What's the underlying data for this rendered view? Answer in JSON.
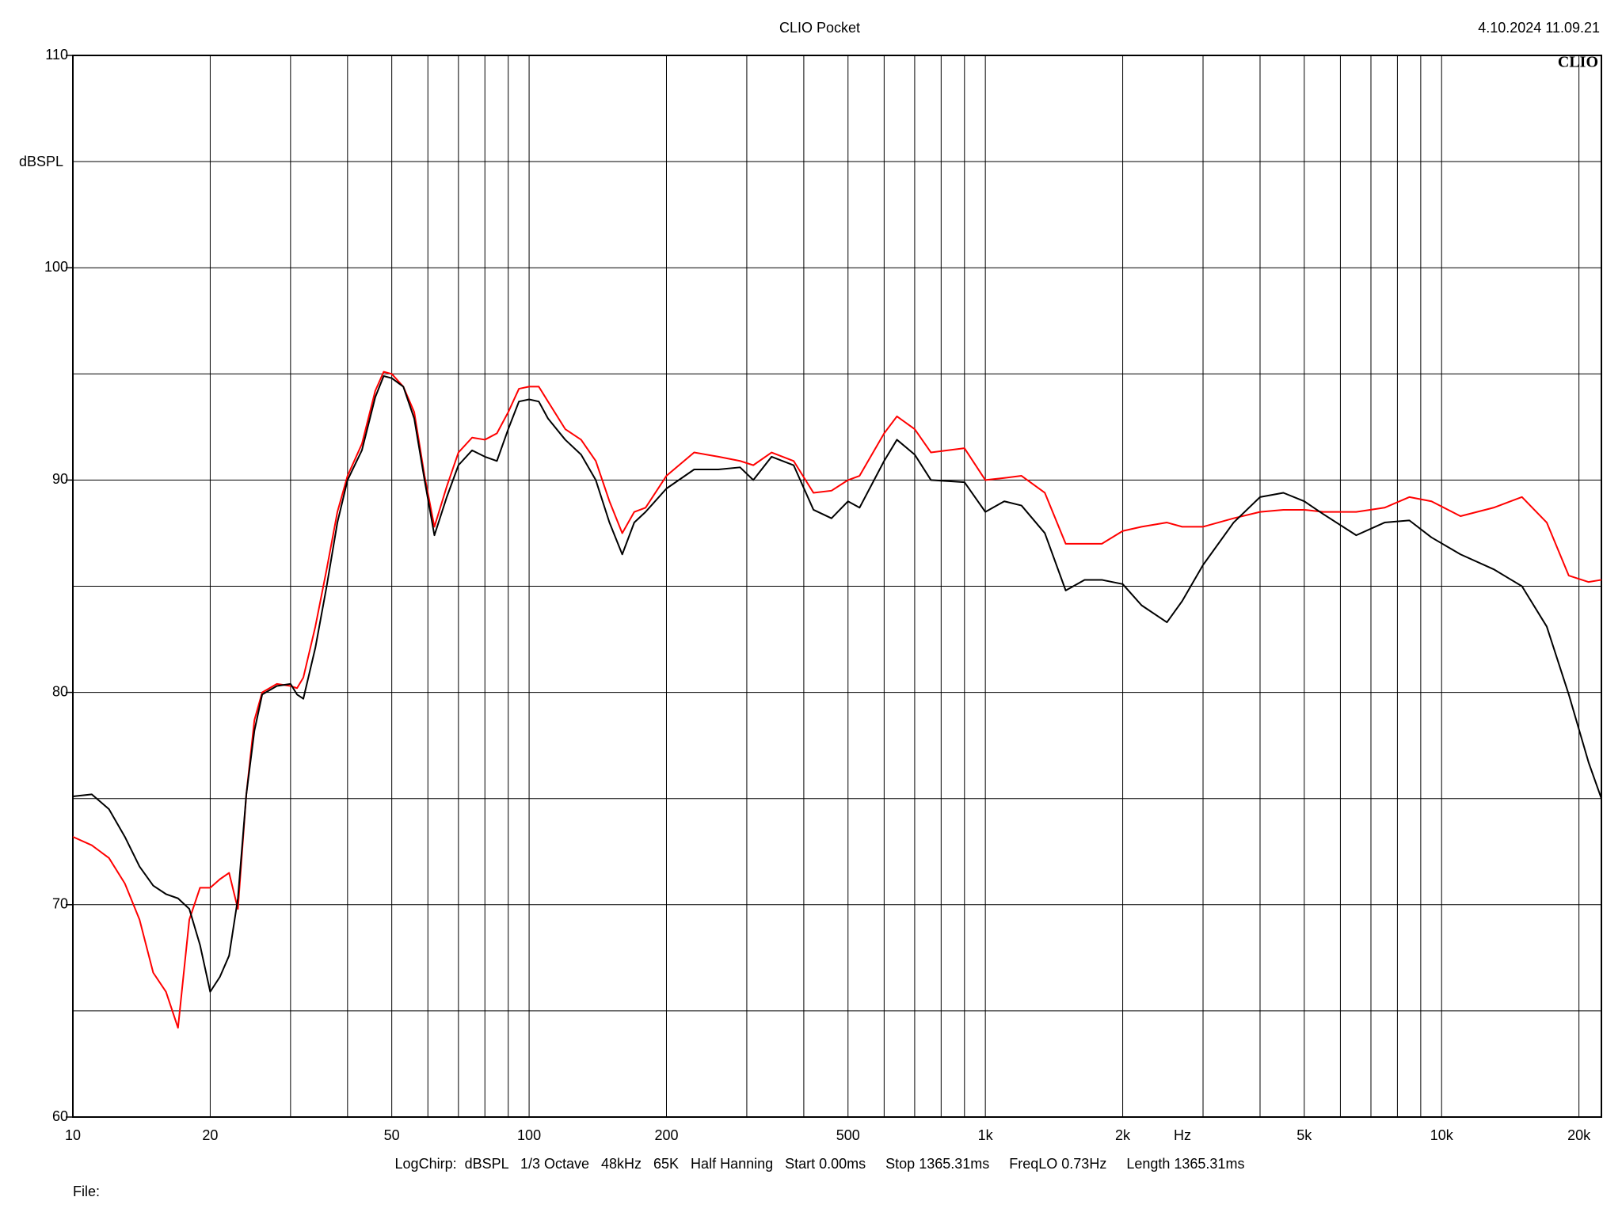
{
  "chart_data": {
    "type": "line",
    "title": "CLIO Pocket",
    "timestamp": "4.10.2024 11.09.21",
    "logo": "CLIO",
    "y_label": "dBSPL",
    "x_label": "Hz",
    "footer": "LogChirp:  dBSPL   1/3 Octave   48kHz   65K   Half Hanning   Start 0.00ms     Stop 1365.31ms     FreqLO 0.73Hz     Length 1365.31ms",
    "file_label": "File:",
    "xscale": "log",
    "xlim": [
      10,
      22400
    ],
    "ylim": [
      60,
      110
    ],
    "xticks": [
      10,
      20,
      50,
      100,
      200,
      500,
      {
        "value": 1000,
        "label": "1k"
      },
      {
        "value": 2000,
        "label": "2k"
      },
      {
        "value": 5000,
        "label": "5k"
      },
      {
        "value": 10000,
        "label": "10k"
      },
      {
        "value": 20000,
        "label": "20k"
      }
    ],
    "yticks": [
      60,
      70,
      80,
      90,
      100,
      110
    ],
    "x_minor_grid": [
      30,
      40,
      60,
      70,
      80,
      90,
      300,
      400,
      600,
      700,
      800,
      900,
      3000,
      4000,
      6000,
      7000,
      8000,
      9000
    ],
    "y_minor_grid": [
      65,
      75,
      85,
      95,
      105
    ],
    "grid": true,
    "x": [
      10,
      11,
      12,
      13,
      14,
      15,
      16,
      17,
      18,
      19,
      20,
      21,
      22,
      23,
      24,
      25,
      26,
      28,
      30,
      31,
      32,
      34,
      36,
      38,
      40,
      43,
      46,
      48,
      50,
      53,
      56,
      59,
      62,
      66,
      70,
      75,
      80,
      85,
      90,
      95,
      100,
      105,
      110,
      120,
      130,
      140,
      150,
      160,
      170,
      180,
      200,
      230,
      260,
      290,
      310,
      340,
      380,
      420,
      460,
      500,
      530,
      600,
      640,
      700,
      760,
      900,
      1000,
      1100,
      1200,
      1350,
      1500,
      1650,
      1800,
      2000,
      2200,
      2500,
      2700,
      3000,
      3500,
      4000,
      4500,
      5000,
      5500,
      6500,
      7500,
      8500,
      9500,
      11000,
      13000,
      15000,
      17000,
      19000,
      21000,
      22400
    ],
    "series": [
      {
        "color": "#ff0000",
        "values": [
          73.2,
          72.8,
          72.2,
          71.0,
          69.3,
          66.8,
          65.9,
          64.2,
          69.3,
          70.8,
          70.8,
          71.2,
          71.5,
          69.8,
          75.2,
          78.7,
          80.0,
          80.4,
          80.3,
          80.2,
          80.7,
          83.1,
          85.8,
          88.5,
          90.2,
          91.7,
          94.2,
          95.1,
          95.0,
          94.4,
          93.2,
          90.2,
          87.8,
          89.7,
          91.3,
          92.0,
          91.9,
          92.2,
          93.2,
          94.3,
          94.4,
          94.4,
          93.7,
          92.4,
          91.9,
          90.9,
          89.0,
          87.5,
          88.5,
          88.7,
          90.2,
          91.3,
          91.1,
          90.9,
          90.7,
          91.3,
          90.9,
          89.4,
          89.5,
          90.0,
          90.2,
          92.2,
          93.0,
          92.4,
          91.3,
          91.5,
          90.0,
          90.1,
          90.2,
          89.4,
          87.0,
          87.0,
          87.0,
          87.6,
          87.8,
          88.0,
          87.8,
          87.8,
          88.2,
          88.5,
          88.6,
          88.6,
          88.5,
          88.5,
          88.7,
          89.2,
          89.0,
          88.3,
          88.7,
          89.2,
          88.0,
          85.5,
          85.2,
          85.3
        ]
      },
      {
        "color": "#000000",
        "values": [
          75.1,
          75.2,
          74.5,
          73.2,
          71.8,
          70.9,
          70.5,
          70.3,
          69.8,
          68.1,
          65.9,
          66.6,
          67.6,
          70.3,
          75.2,
          78.2,
          79.9,
          80.3,
          80.4,
          79.9,
          79.7,
          82.1,
          85.0,
          88.0,
          90.0,
          91.4,
          93.9,
          94.9,
          94.8,
          94.4,
          92.9,
          90.0,
          87.4,
          89.2,
          90.7,
          91.4,
          91.1,
          90.9,
          92.4,
          93.7,
          93.8,
          93.7,
          92.9,
          91.9,
          91.2,
          90.0,
          88.0,
          86.5,
          88.0,
          88.5,
          89.6,
          90.5,
          90.5,
          90.6,
          90.0,
          91.1,
          90.7,
          88.6,
          88.2,
          89.0,
          88.7,
          90.9,
          91.9,
          91.2,
          90.0,
          89.9,
          88.5,
          89.0,
          88.8,
          87.5,
          84.8,
          85.3,
          85.3,
          85.1,
          84.1,
          83.3,
          84.3,
          86.0,
          88.0,
          89.2,
          89.4,
          89.0,
          88.4,
          87.4,
          88.0,
          88.1,
          87.3,
          86.5,
          85.8,
          85.0,
          83.1,
          79.9,
          76.7,
          75.0
        ]
      }
    ]
  }
}
